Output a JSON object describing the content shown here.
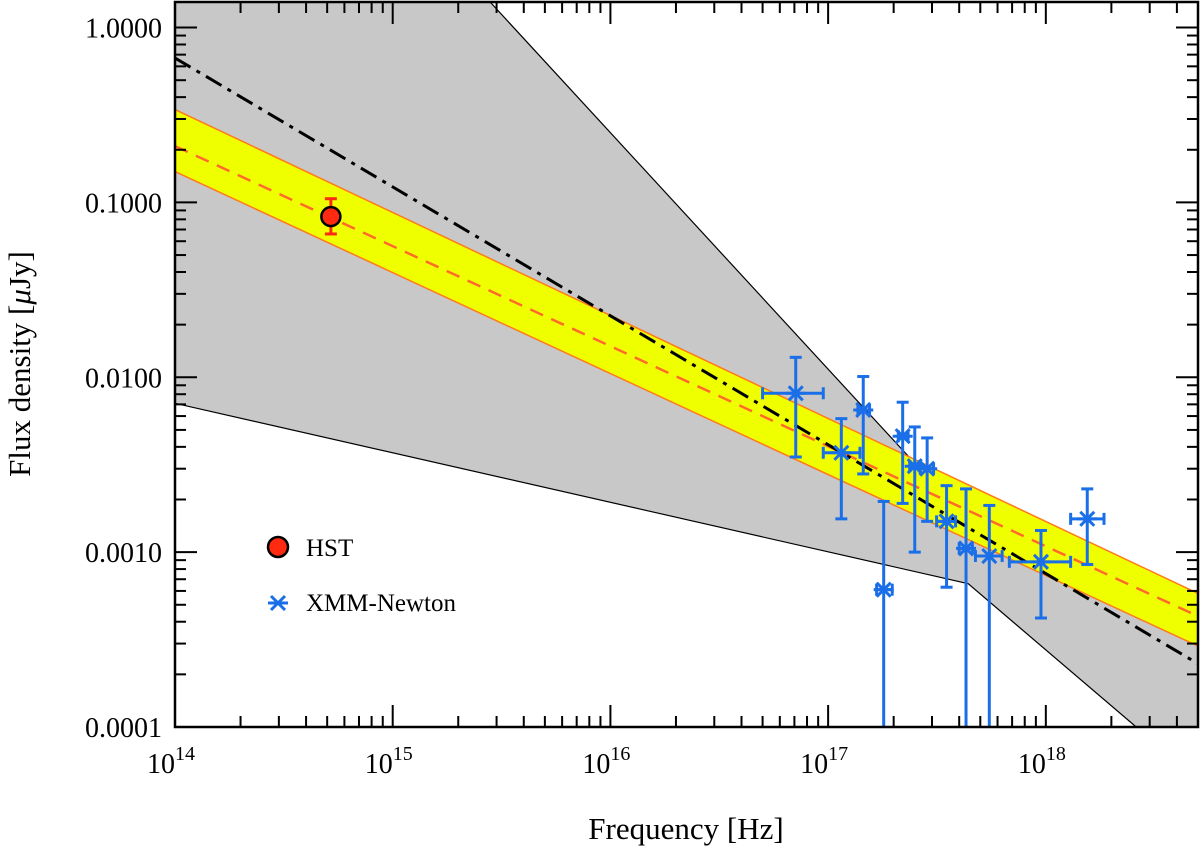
{
  "chart_data": {
    "type": "scatter",
    "title": "",
    "xlabel": "Frequency [Hz]",
    "ylabel_prefix": "Flux density [",
    "ylabel_mu": "μ",
    "ylabel_suffix": "Jy]",
    "xscale": "log",
    "yscale": "log",
    "xlim": [
      100000000000000.0,
      5e+18
    ],
    "ylim": [
      0.0001,
      1.4
    ],
    "grid": false,
    "legend_position": "lower-left",
    "x_tick_labels": [
      {
        "value": 100000000000000.0,
        "base": "10",
        "exp": "14"
      },
      {
        "value": 1000000000000000.0,
        "base": "10",
        "exp": "15"
      },
      {
        "value": 1e+16,
        "base": "10",
        "exp": "16"
      },
      {
        "value": 1e+17,
        "base": "10",
        "exp": "17"
      },
      {
        "value": 1e+18,
        "base": "10",
        "exp": "18"
      }
    ],
    "y_tick_labels": [
      {
        "value": 0.0001,
        "label": "0.0001"
      },
      {
        "value": 0.001,
        "label": "0.0010"
      },
      {
        "value": 0.01,
        "label": "0.0100"
      },
      {
        "value": 0.1,
        "label": "0.1000"
      },
      {
        "value": 1.0,
        "label": "1.0000"
      }
    ],
    "series": [
      {
        "name": "HST",
        "color": "#ff2a10",
        "marker": "circle",
        "points": [
          {
            "x": 520000000000000.0,
            "y": 0.083,
            "y_lo": 0.066,
            "y_hi": 0.105
          }
        ]
      },
      {
        "name": "XMM-Newton",
        "color": "#1a6fe8",
        "marker": "asterisk",
        "points": [
          {
            "x": 7.1e+16,
            "y": 0.0081,
            "x_lo": 5e+16,
            "x_hi": 9.5e+16,
            "y_lo": 0.0035,
            "y_hi": 0.013
          },
          {
            "x": 1.15e+17,
            "y": 0.0037,
            "x_lo": 9.5e+16,
            "x_hi": 1.4e+17,
            "y_lo": 0.00155,
            "y_hi": 0.0058
          },
          {
            "x": 1.45e+17,
            "y": 0.0065,
            "x_lo": 1.37e+17,
            "x_hi": 1.55e+17,
            "y_lo": 0.0028,
            "y_hi": 0.0101
          },
          {
            "x": 1.8e+17,
            "y": 0.00061,
            "x_lo": 1.67e+17,
            "x_hi": 1.97e+17,
            "y_lo": 0.0001,
            "y_hi": 0.00195
          },
          {
            "x": 2.2e+17,
            "y": 0.0046,
            "x_lo": 2.1e+17,
            "x_hi": 2.33e+17,
            "y_lo": 0.0019,
            "y_hi": 0.0072
          },
          {
            "x": 2.5e+17,
            "y": 0.0031,
            "x_lo": 2.37e+17,
            "x_hi": 2.62e+17,
            "y_lo": 0.001,
            "y_hi": 0.0052
          },
          {
            "x": 2.85e+17,
            "y": 0.003,
            "x_lo": 2.65e+17,
            "x_hi": 3.05e+17,
            "y_lo": 0.0015,
            "y_hi": 0.0045
          },
          {
            "x": 3.5e+17,
            "y": 0.0015,
            "x_lo": 3.15e+17,
            "x_hi": 3.85e+17,
            "y_lo": 0.00063,
            "y_hi": 0.0024
          },
          {
            "x": 4.3e+17,
            "y": 0.00105,
            "x_lo": 4e+17,
            "x_hi": 4.6e+17,
            "y_lo": 0.0001,
            "y_hi": 0.0023
          },
          {
            "x": 5.5e+17,
            "y": 0.00095,
            "x_lo": 4.75e+17,
            "x_hi": 6.3e+17,
            "y_lo": 0.0001,
            "y_hi": 0.00185
          },
          {
            "x": 9.5e+17,
            "y": 0.00088,
            "x_lo": 6.8e+17,
            "x_hi": 1.3e+18,
            "y_lo": 0.00042,
            "y_hi": 0.00133
          },
          {
            "x": 1.55e+18,
            "y": 0.00155,
            "x_lo": 1.3e+18,
            "x_hi": 1.85e+18,
            "y_lo": 0.00085,
            "y_hi": 0.0023
          }
        ]
      }
    ],
    "lines": [
      {
        "name": "best-fit",
        "style": "dashed",
        "color": "#ff6a2a",
        "x": [
          100000000000000.0,
          5e+18
        ],
        "y": [
          0.21,
          0.00043
        ]
      },
      {
        "name": "alternative-fit",
        "style": "dash-dot",
        "color": "#000000",
        "x": [
          100000000000000.0,
          5e+18
        ],
        "y": [
          0.67,
          0.00023
        ]
      }
    ],
    "bands": [
      {
        "name": "gray-envelope",
        "fill": "#c8c8c8",
        "upper": {
          "x": [
            100000000000000.0,
            2800000000000000.0,
            4.4e+17,
            5e+18
          ],
          "y": [
            1.4,
            1.4,
            0.0015,
            0.00053
          ]
        },
        "lower": {
          "x": [
            100000000000000.0,
            4.4e+17,
            2.6e+18
          ],
          "y": [
            0.0071,
            0.00066,
            0.0001
          ]
        }
      },
      {
        "name": "yellow-band",
        "fill": "#f0ff00",
        "edge": "#ff7a1a",
        "upper": {
          "x": [
            100000000000000.0,
            5e+18
          ],
          "y": [
            0.34,
            0.00058
          ]
        },
        "lower": {
          "x": [
            100000000000000.0,
            5e+18
          ],
          "y": [
            0.15,
            0.00029
          ]
        }
      }
    ]
  }
}
